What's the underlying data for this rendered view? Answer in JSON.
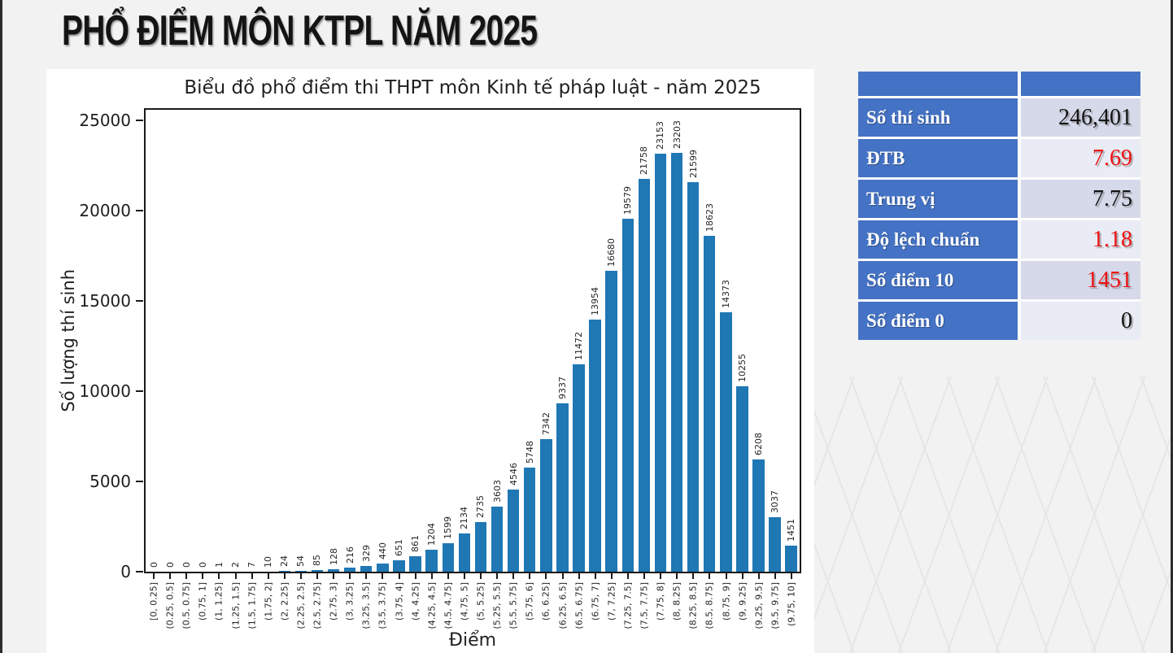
{
  "page": {
    "title": "PHỔ ĐIỂM MÔN KTPL NĂM 2025"
  },
  "chart_data": {
    "type": "bar",
    "title": "Biểu đồ phổ điểm thi THPT môn Kinh tế pháp luật - năm 2025",
    "xlabel": "Điểm",
    "ylabel": "Số lượng thí sinh",
    "ylim": [
      0,
      25600
    ],
    "yticks": [
      0,
      5000,
      10000,
      15000,
      20000,
      25000
    ],
    "bar_color": "#1f77b4",
    "grid": false,
    "legend": "none",
    "categories": [
      "[0, 0.25]",
      "(0.25, 0.5]",
      "(0.5, 0.75]",
      "(0.75, 1]",
      "(1, 1.25]",
      "(1.25, 1.5]",
      "(1.5, 1.75]",
      "(1.75, 2]",
      "(2, 2.25]",
      "(2.25, 2.5]",
      "(2.5, 2.75]",
      "(2.75, 3]",
      "(3, 3.25]",
      "(3.25, 3.5]",
      "(3.5, 3.75]",
      "(3.75, 4]",
      "(4, 4.25]",
      "(4.25, 4.5]",
      "(4.5, 4.75]",
      "(4.75, 5]",
      "(5, 5.25]",
      "(5.25, 5.5]",
      "(5.5, 5.75]",
      "(5.75, 6]",
      "(6, 6.25]",
      "(6.25, 6.5]",
      "(6.5, 6.75]",
      "(6.75, 7]",
      "(7, 7.25]",
      "(7.25, 7.5]",
      "(7.5, 7.75]",
      "(7.75, 8]",
      "(8, 8.25]",
      "(8.25, 8.5]",
      "(8.5, 8.75]",
      "(8.75, 9]",
      "(9, 9.25]",
      "(9.25, 9.5]",
      "(9.5, 9.75]",
      "(9.75, 10]"
    ],
    "values": [
      0,
      0,
      0,
      0,
      1,
      2,
      7,
      10,
      24,
      54,
      85,
      128,
      216,
      329,
      440,
      651,
      861,
      1204,
      1599,
      2134,
      2735,
      3603,
      4546,
      5748,
      7342,
      9337,
      11472,
      13954,
      16680,
      19579,
      21758,
      23153,
      23203,
      21599,
      18623,
      14373,
      10255,
      6208,
      3037,
      1451
    ]
  },
  "stats_table": {
    "rows": [
      {
        "label": "Số thí sinh",
        "value": "246,401",
        "color": "black"
      },
      {
        "label": "ĐTB",
        "value": "7.69",
        "color": "red"
      },
      {
        "label": "Trung vị",
        "value": "7.75",
        "color": "black"
      },
      {
        "label": "Độ lệch chuẩn",
        "value": "1.18",
        "color": "red"
      },
      {
        "label": "Số điểm 10",
        "value": "1451",
        "color": "red"
      },
      {
        "label": "Số điểm 0",
        "value": "0",
        "color": "black"
      }
    ],
    "colors": {
      "header_blue": "#4472c4",
      "row_dark": "#d5d9ea",
      "row_light": "#e9ecf5",
      "red": "#ee1111",
      "black": "#141414"
    }
  }
}
